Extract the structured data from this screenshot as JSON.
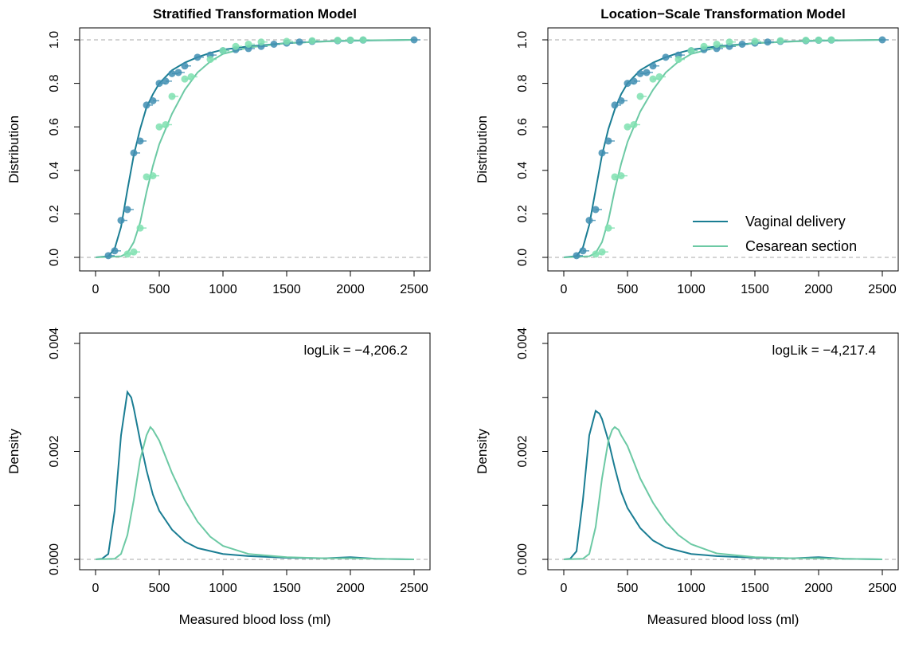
{
  "colors": {
    "vaginal": "#1a7d93",
    "cesarean": "#6cc9a4",
    "vaginal_points": "#3f8eb2",
    "cesarean_points": "#7fe0b0",
    "reference_line": "#aaaaaa"
  },
  "chart_data": [
    {
      "type": "line",
      "panel": "top-left",
      "title": "Stratified Transformation Model",
      "xlabel": "",
      "ylabel": "Distribution",
      "xlim": [
        0,
        2500
      ],
      "ylim": [
        0,
        1
      ],
      "x_ticks": [
        0,
        500,
        1000,
        1500,
        2000,
        2500
      ],
      "y_ticks": [
        0.0,
        0.2,
        0.4,
        0.6,
        0.8,
        1.0
      ],
      "y_tick_labels": [
        "0.0",
        "0.2",
        "0.4",
        "0.6",
        "0.8",
        "1.0"
      ],
      "reference_lines": [
        0,
        1
      ],
      "series": [
        {
          "name": "Vaginal delivery",
          "color_key": "vaginal",
          "x": [
            0,
            100,
            150,
            200,
            250,
            300,
            350,
            400,
            450,
            500,
            600,
            700,
            800,
            900,
            1000,
            1200,
            1500,
            1800,
            2000,
            2500
          ],
          "y": [
            0.0,
            0.005,
            0.04,
            0.14,
            0.31,
            0.47,
            0.59,
            0.69,
            0.75,
            0.8,
            0.86,
            0.895,
            0.92,
            0.94,
            0.955,
            0.97,
            0.985,
            0.993,
            0.996,
            1.0
          ]
        },
        {
          "name": "Cesarean section",
          "color_key": "cesarean",
          "x": [
            0,
            200,
            250,
            300,
            350,
            400,
            450,
            500,
            600,
            700,
            800,
            900,
            1000,
            1200,
            1500,
            2000,
            2500
          ],
          "y": [
            0.0,
            0.005,
            0.02,
            0.07,
            0.16,
            0.3,
            0.42,
            0.52,
            0.66,
            0.77,
            0.85,
            0.9,
            0.935,
            0.965,
            0.985,
            0.997,
            1.0
          ]
        }
      ],
      "points": [
        {
          "series": "Vaginal delivery",
          "color_key": "vaginal_points",
          "x": [
            100,
            150,
            200,
            250,
            300,
            350,
            400,
            450,
            500,
            550,
            600,
            650,
            700,
            800,
            900,
            1000,
            1100,
            1200,
            1300,
            1400,
            1500,
            1600,
            1700,
            1900,
            2000,
            2100,
            2500
          ],
          "y": [
            0.008,
            0.03,
            0.17,
            0.22,
            0.48,
            0.535,
            0.7,
            0.72,
            0.8,
            0.81,
            0.845,
            0.85,
            0.88,
            0.92,
            0.93,
            0.95,
            0.955,
            0.96,
            0.97,
            0.98,
            0.985,
            0.99,
            0.993,
            0.996,
            0.998,
            0.999,
            1.0
          ]
        },
        {
          "series": "Cesarean section",
          "color_key": "cesarean_points",
          "x": [
            250,
            300,
            350,
            400,
            450,
            500,
            550,
            600,
            700,
            750,
            900,
            1000,
            1100,
            1200,
            1300,
            1500,
            1700,
            1900,
            2000,
            2100
          ],
          "y": [
            0.015,
            0.025,
            0.135,
            0.37,
            0.375,
            0.6,
            0.61,
            0.74,
            0.82,
            0.83,
            0.91,
            0.95,
            0.97,
            0.98,
            0.99,
            0.993,
            0.996,
            0.998,
            0.999,
            1.0
          ]
        }
      ]
    },
    {
      "type": "line",
      "panel": "top-right",
      "title": "Location−Scale Transformation Model",
      "xlabel": "",
      "ylabel": "Distribution",
      "xlim": [
        0,
        2500
      ],
      "ylim": [
        0,
        1
      ],
      "x_ticks": [
        0,
        500,
        1000,
        1500,
        2000,
        2500
      ],
      "y_ticks": [
        0.0,
        0.2,
        0.4,
        0.6,
        0.8,
        1.0
      ],
      "y_tick_labels": [
        "0.0",
        "0.2",
        "0.4",
        "0.6",
        "0.8",
        "1.0"
      ],
      "reference_lines": [
        0,
        1
      ],
      "legend": {
        "position": "bottom-right",
        "entries": [
          "Vaginal delivery",
          "Cesarean section"
        ]
      },
      "series": [
        {
          "name": "Vaginal delivery",
          "color_key": "vaginal",
          "x": [
            0,
            100,
            150,
            200,
            250,
            300,
            350,
            400,
            450,
            500,
            600,
            700,
            800,
            900,
            1000,
            1200,
            1500,
            1800,
            2000,
            2500
          ],
          "y": [
            0.0,
            0.006,
            0.045,
            0.15,
            0.31,
            0.47,
            0.59,
            0.68,
            0.75,
            0.8,
            0.86,
            0.895,
            0.92,
            0.94,
            0.955,
            0.97,
            0.985,
            0.993,
            0.996,
            1.0
          ]
        },
        {
          "name": "Cesarean section",
          "color_key": "cesarean",
          "x": [
            0,
            200,
            250,
            300,
            350,
            400,
            450,
            500,
            600,
            700,
            800,
            900,
            1000,
            1200,
            1500,
            2000,
            2500
          ],
          "y": [
            0.0,
            0.005,
            0.02,
            0.07,
            0.17,
            0.31,
            0.43,
            0.53,
            0.67,
            0.77,
            0.85,
            0.9,
            0.935,
            0.965,
            0.985,
            0.997,
            1.0
          ]
        }
      ],
      "points": [
        {
          "series": "Vaginal delivery",
          "color_key": "vaginal_points",
          "x": [
            100,
            150,
            200,
            250,
            300,
            350,
            400,
            450,
            500,
            550,
            600,
            650,
            700,
            800,
            900,
            1000,
            1100,
            1200,
            1300,
            1400,
            1500,
            1600,
            1700,
            1900,
            2000,
            2100,
            2500
          ],
          "y": [
            0.008,
            0.03,
            0.17,
            0.22,
            0.48,
            0.535,
            0.7,
            0.72,
            0.8,
            0.81,
            0.845,
            0.85,
            0.88,
            0.92,
            0.93,
            0.95,
            0.955,
            0.96,
            0.97,
            0.98,
            0.985,
            0.99,
            0.993,
            0.996,
            0.998,
            0.999,
            1.0
          ]
        },
        {
          "series": "Cesarean section",
          "color_key": "cesarean_points",
          "x": [
            250,
            300,
            350,
            400,
            450,
            500,
            550,
            600,
            700,
            750,
            900,
            1000,
            1100,
            1200,
            1300,
            1500,
            1700,
            1900,
            2000,
            2100
          ],
          "y": [
            0.015,
            0.025,
            0.135,
            0.37,
            0.375,
            0.6,
            0.61,
            0.74,
            0.82,
            0.83,
            0.91,
            0.95,
            0.97,
            0.98,
            0.99,
            0.993,
            0.996,
            0.998,
            0.999,
            1.0
          ]
        }
      ]
    },
    {
      "type": "line",
      "panel": "bottom-left",
      "title": "",
      "xlabel": "Measured blood loss (ml)",
      "ylabel": "Density",
      "xlim": [
        0,
        2500
      ],
      "ylim": [
        0,
        0.004
      ],
      "x_ticks": [
        0,
        500,
        1000,
        1500,
        2000,
        2500
      ],
      "y_ticks": [
        0.0,
        0.001,
        0.002,
        0.003,
        0.004
      ],
      "y_tick_labels": [
        "0.000",
        "",
        "0.002",
        "",
        "0.004"
      ],
      "reference_lines": [
        0
      ],
      "annotation": "logLik =  −4,206.2",
      "series": [
        {
          "name": "Vaginal delivery",
          "color_key": "vaginal",
          "x": [
            0,
            50,
            100,
            150,
            200,
            250,
            280,
            300,
            350,
            400,
            450,
            500,
            600,
            700,
            800,
            1000,
            1200,
            1500,
            1800,
            2000,
            2200,
            2500
          ],
          "y": [
            0,
            1e-05,
            0.0001,
            0.0009,
            0.0023,
            0.0031,
            0.003,
            0.0028,
            0.0022,
            0.00165,
            0.0012,
            0.0009,
            0.00055,
            0.00033,
            0.00021,
            0.0001,
            6e-05,
            3e-05,
            2e-05,
            4e-05,
            1e-05,
            0
          ]
        },
        {
          "name": "Cesarean section",
          "color_key": "cesarean",
          "x": [
            0,
            150,
            200,
            250,
            300,
            350,
            400,
            430,
            450,
            500,
            550,
            600,
            700,
            800,
            900,
            1000,
            1200,
            1500,
            1800,
            2000,
            2200,
            2500
          ],
          "y": [
            0,
            1e-05,
            0.0001,
            0.00045,
            0.0011,
            0.00185,
            0.0023,
            0.00245,
            0.0024,
            0.0022,
            0.0019,
            0.0016,
            0.0011,
            0.0007,
            0.00042,
            0.00025,
            0.0001,
            4e-05,
            2e-05,
            2e-05,
            1e-05,
            0
          ]
        }
      ]
    },
    {
      "type": "line",
      "panel": "bottom-right",
      "title": "",
      "xlabel": "Measured blood loss (ml)",
      "ylabel": "Density",
      "xlim": [
        0,
        2500
      ],
      "ylim": [
        0,
        0.004
      ],
      "x_ticks": [
        0,
        500,
        1000,
        1500,
        2000,
        2500
      ],
      "y_ticks": [
        0.0,
        0.001,
        0.002,
        0.003,
        0.004
      ],
      "y_tick_labels": [
        "0.000",
        "",
        "0.002",
        "",
        "0.004"
      ],
      "reference_lines": [
        0
      ],
      "annotation": "logLik =  −4,217.4",
      "series": [
        {
          "name": "Vaginal delivery",
          "color_key": "vaginal",
          "x": [
            0,
            50,
            100,
            150,
            200,
            250,
            280,
            300,
            350,
            400,
            450,
            500,
            600,
            700,
            800,
            1000,
            1200,
            1500,
            1800,
            2000,
            2200,
            2500
          ],
          "y": [
            0,
            1e-05,
            0.00015,
            0.0011,
            0.0023,
            0.00275,
            0.0027,
            0.0026,
            0.0022,
            0.0017,
            0.00125,
            0.00095,
            0.00058,
            0.00035,
            0.00022,
            0.0001,
            6e-05,
            3e-05,
            2e-05,
            4e-05,
            1e-05,
            0
          ]
        },
        {
          "name": "Cesarean section",
          "color_key": "cesarean",
          "x": [
            0,
            150,
            200,
            250,
            300,
            350,
            380,
            400,
            430,
            450,
            500,
            550,
            600,
            700,
            800,
            900,
            1000,
            1200,
            1500,
            1800,
            2000,
            2200,
            2500
          ],
          "y": [
            0,
            1e-05,
            0.0001,
            0.0006,
            0.0015,
            0.0022,
            0.0024,
            0.00245,
            0.0024,
            0.0023,
            0.0021,
            0.0018,
            0.0015,
            0.00105,
            0.0007,
            0.00045,
            0.00028,
            0.00011,
            4e-05,
            2e-05,
            2e-05,
            1e-05,
            0
          ]
        }
      ]
    }
  ]
}
